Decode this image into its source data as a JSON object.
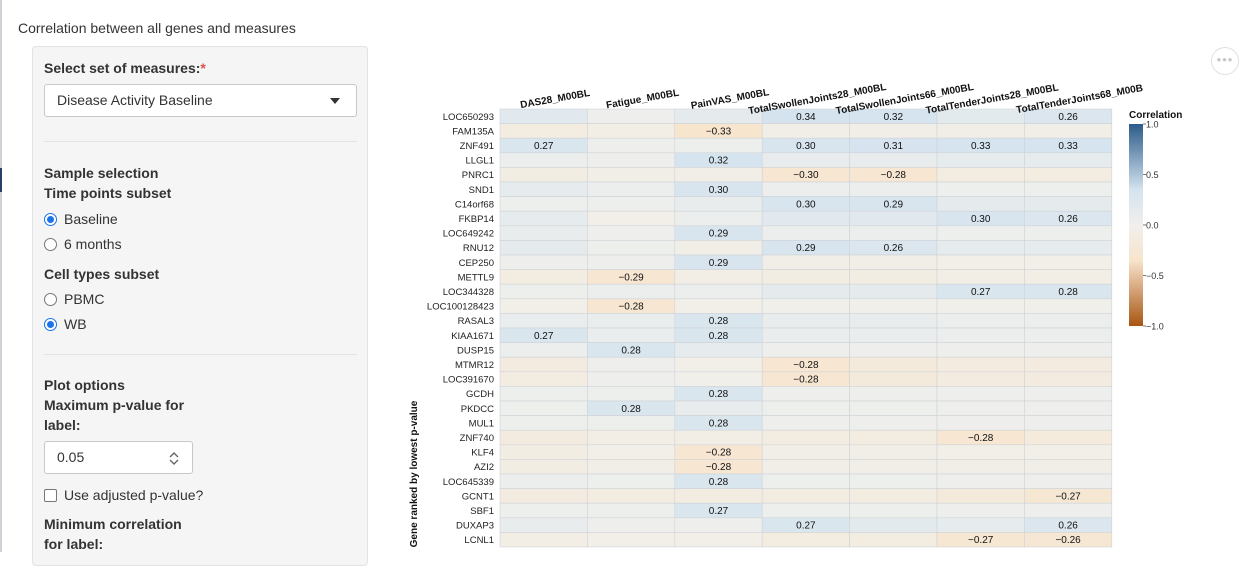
{
  "page": {
    "title": "Correlation between all genes and measures"
  },
  "sidebar": {
    "measures_label": "Select set of measures:",
    "required_mark": "*",
    "measures_selected": "Disease Activity Baseline",
    "sample_selection_label": "Sample selection",
    "timepoints_label": "Time points subset",
    "timepoints": [
      "Baseline",
      "6 months"
    ],
    "timepoint_selected": "Baseline",
    "celltypes_label": "Cell types subset",
    "celltypes": [
      "PBMC",
      "WB"
    ],
    "celltype_selected": "WB",
    "plot_options_label": "Plot options",
    "max_p_label_1": "Maximum p-value for",
    "max_p_label_2": "label:",
    "max_p_value": "0.05",
    "adjusted_p_label": "Use adjusted p-value?",
    "min_corr_label_1": "Minimum correlation",
    "min_corr_label_2": "for label:"
  },
  "toolbar": {
    "more_glyph": "•••"
  },
  "colors": {
    "pos_strong": "#2b5c8a",
    "pos_light": "#d4e3ef",
    "neutral": "#f0f0ec",
    "neg_light": "#f8e4cc",
    "neg_strong": "#a85512",
    "border": "#cfd3d8"
  },
  "chart_data": {
    "type": "heatmap",
    "ylabel": "Gene ranked by lowest p-value",
    "columns": [
      "DAS28_M00BL",
      "Fatigue_M00BL",
      "PainVAS_M00BL",
      "TotalSwollenJoints28_M00BL",
      "TotalSwollenJoints66_M00BL",
      "TotalTenderJoints28_M00BL",
      "TotalTenderJoints68_M00B"
    ],
    "legend": {
      "title": "Correlation",
      "range": [
        -1,
        1
      ],
      "ticks": [
        "1.0",
        "0.5",
        "0.0",
        "−0.5",
        "−1.0"
      ],
      "tick_values": [
        1,
        0.5,
        0,
        -0.5,
        -1
      ]
    },
    "rows": [
      {
        "gene": "LOC650293",
        "values": [
          0.18,
          0.02,
          0.14,
          0.34,
          0.32,
          0.16,
          0.26
        ],
        "labels": [
          null,
          null,
          null,
          "0.34",
          "0.32",
          null,
          "0.26"
        ]
      },
      {
        "gene": "FAM135A",
        "values": [
          -0.12,
          -0.08,
          -0.33,
          -0.05,
          -0.05,
          -0.06,
          -0.06
        ],
        "labels": [
          null,
          null,
          "−0.33",
          null,
          null,
          null,
          null
        ]
      },
      {
        "gene": "ZNF491",
        "values": [
          0.27,
          0.02,
          0.04,
          0.3,
          0.31,
          0.33,
          0.33
        ],
        "labels": [
          "0.27",
          null,
          null,
          "0.30",
          "0.31",
          "0.33",
          "0.33"
        ]
      },
      {
        "gene": "LLGL1",
        "values": [
          0.06,
          0.02,
          0.32,
          0.1,
          0.1,
          0.12,
          0.12
        ],
        "labels": [
          null,
          null,
          "0.32",
          null,
          null,
          null,
          null
        ]
      },
      {
        "gene": "PNRC1",
        "values": [
          -0.1,
          -0.06,
          -0.06,
          -0.3,
          -0.28,
          -0.12,
          -0.12
        ],
        "labels": [
          null,
          null,
          null,
          "−0.30",
          "−0.28",
          null,
          null
        ]
      },
      {
        "gene": "SND1",
        "values": [
          0.12,
          0.06,
          0.3,
          0.06,
          0.06,
          0.04,
          0.04
        ],
        "labels": [
          null,
          null,
          "0.30",
          null,
          null,
          null,
          null
        ]
      },
      {
        "gene": "C14orf68",
        "values": [
          0.04,
          0.04,
          0.1,
          0.3,
          0.29,
          0.14,
          0.14
        ],
        "labels": [
          null,
          null,
          null,
          "0.30",
          "0.29",
          null,
          null
        ]
      },
      {
        "gene": "FKBP14",
        "values": [
          0.12,
          -0.04,
          0.06,
          0.18,
          0.18,
          0.3,
          0.26
        ],
        "labels": [
          null,
          null,
          null,
          null,
          null,
          "0.30",
          "0.26"
        ]
      },
      {
        "gene": "LOC649242",
        "values": [
          0.1,
          0.02,
          0.29,
          0.06,
          0.06,
          0.04,
          0.04
        ],
        "labels": [
          null,
          null,
          "0.29",
          null,
          null,
          null,
          null
        ]
      },
      {
        "gene": "RNU12",
        "values": [
          0.14,
          0.04,
          -0.06,
          0.29,
          0.26,
          0.12,
          0.12
        ],
        "labels": [
          null,
          null,
          null,
          "0.29",
          "0.26",
          null,
          null
        ]
      },
      {
        "gene": "CEP250",
        "values": [
          0.02,
          0.02,
          0.29,
          -0.06,
          -0.06,
          -0.04,
          -0.04
        ],
        "labels": [
          null,
          null,
          "0.29",
          null,
          null,
          null,
          null
        ]
      },
      {
        "gene": "METTL9",
        "values": [
          -0.12,
          -0.29,
          -0.08,
          -0.1,
          -0.1,
          -0.08,
          -0.08
        ],
        "labels": [
          null,
          "−0.29",
          null,
          null,
          null,
          null,
          null
        ]
      },
      {
        "gene": "LOC344328",
        "values": [
          0.04,
          0.06,
          0.06,
          0.14,
          0.14,
          0.27,
          0.28
        ],
        "labels": [
          null,
          null,
          null,
          null,
          null,
          "0.27",
          "0.28"
        ]
      },
      {
        "gene": "LOC100128423",
        "values": [
          -0.04,
          -0.28,
          -0.04,
          -0.02,
          -0.02,
          -0.02,
          -0.02
        ],
        "labels": [
          null,
          "−0.28",
          null,
          null,
          null,
          null,
          null
        ]
      },
      {
        "gene": "RASAL3",
        "values": [
          0.08,
          0.08,
          0.28,
          0.1,
          0.1,
          0.06,
          0.06
        ],
        "labels": [
          null,
          null,
          "0.28",
          null,
          null,
          null,
          null
        ]
      },
      {
        "gene": "KIAA1671",
        "values": [
          0.27,
          0.08,
          0.28,
          0.08,
          0.08,
          0.06,
          0.06
        ],
        "labels": [
          "0.27",
          null,
          "0.28",
          null,
          null,
          null,
          null
        ]
      },
      {
        "gene": "DUSP15",
        "values": [
          0.06,
          0.28,
          0.12,
          0.02,
          0.02,
          0.02,
          0.02
        ],
        "labels": [
          null,
          "0.28",
          null,
          null,
          null,
          null,
          null
        ]
      },
      {
        "gene": "MTMR12",
        "values": [
          -0.14,
          0.02,
          -0.04,
          -0.28,
          -0.18,
          -0.14,
          -0.14
        ],
        "labels": [
          null,
          null,
          null,
          "−0.28",
          null,
          null,
          null
        ]
      },
      {
        "gene": "LOC391670",
        "values": [
          -0.12,
          0.02,
          -0.02,
          -0.28,
          -0.18,
          -0.14,
          -0.14
        ],
        "labels": [
          null,
          null,
          null,
          "−0.28",
          null,
          null,
          null
        ]
      },
      {
        "gene": "GCDH",
        "values": [
          0.04,
          0.04,
          0.28,
          0.02,
          0.02,
          0.02,
          0.02
        ],
        "labels": [
          null,
          null,
          "0.28",
          null,
          null,
          null,
          null
        ]
      },
      {
        "gene": "PKDCC",
        "values": [
          0.04,
          0.28,
          0.1,
          0.04,
          0.04,
          0.02,
          0.02
        ],
        "labels": [
          null,
          "0.28",
          null,
          null,
          null,
          null,
          null
        ]
      },
      {
        "gene": "MUL1",
        "values": [
          0.04,
          0.04,
          0.28,
          0.02,
          0.02,
          0.02,
          0.02
        ],
        "labels": [
          null,
          null,
          "0.28",
          null,
          null,
          null,
          null
        ]
      },
      {
        "gene": "ZNF740",
        "values": [
          -0.14,
          -0.08,
          -0.08,
          -0.12,
          -0.12,
          -0.28,
          -0.16
        ],
        "labels": [
          null,
          null,
          null,
          null,
          null,
          "−0.28",
          null
        ]
      },
      {
        "gene": "KLF4",
        "values": [
          -0.1,
          -0.04,
          -0.28,
          -0.06,
          -0.06,
          -0.04,
          -0.04
        ],
        "labels": [
          null,
          null,
          "−0.28",
          null,
          null,
          null,
          null
        ]
      },
      {
        "gene": "AZI2",
        "values": [
          -0.1,
          -0.06,
          -0.28,
          -0.06,
          -0.06,
          -0.06,
          -0.06
        ],
        "labels": [
          null,
          null,
          "−0.28",
          null,
          null,
          null,
          null
        ]
      },
      {
        "gene": "LOC645339",
        "values": [
          0.06,
          0.04,
          0.28,
          0.04,
          0.04,
          0.02,
          0.02
        ],
        "labels": [
          null,
          null,
          "0.28",
          null,
          null,
          null,
          null
        ]
      },
      {
        "gene": "GCNT1",
        "values": [
          -0.14,
          -0.12,
          -0.12,
          -0.12,
          -0.12,
          -0.18,
          -0.27
        ],
        "labels": [
          null,
          null,
          null,
          null,
          null,
          null,
          "−0.27"
        ]
      },
      {
        "gene": "SBF1",
        "values": [
          0.04,
          0.04,
          0.27,
          0.04,
          0.04,
          0.02,
          0.02
        ],
        "labels": [
          null,
          null,
          "0.27",
          null,
          null,
          null,
          null
        ]
      },
      {
        "gene": "DUXAP3",
        "values": [
          0.1,
          0.02,
          0.02,
          0.27,
          0.16,
          0.12,
          0.26
        ],
        "labels": [
          null,
          null,
          null,
          "0.27",
          null,
          null,
          "0.26"
        ]
      },
      {
        "gene": "LCNL1",
        "values": [
          -0.08,
          -0.04,
          -0.04,
          -0.12,
          -0.12,
          -0.27,
          -0.26
        ],
        "labels": [
          null,
          null,
          null,
          null,
          null,
          "−0.27",
          "−0.26"
        ]
      }
    ]
  }
}
